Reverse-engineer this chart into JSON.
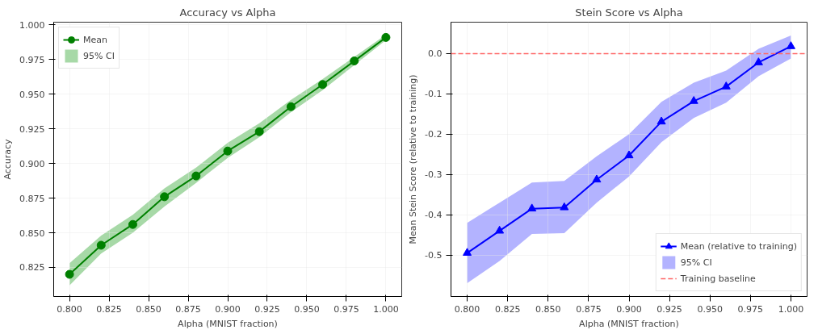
{
  "chart_data": [
    {
      "type": "line",
      "title": "Accuracy vs Alpha",
      "xlabel": "Alpha (MNIST fraction)",
      "ylabel": "Accuracy",
      "x": [
        0.8,
        0.82,
        0.84,
        0.86,
        0.88,
        0.9,
        0.92,
        0.94,
        0.96,
        0.98,
        1.0
      ],
      "series": [
        {
          "name": "Mean",
          "color": "#008000",
          "marker": "circle",
          "values": [
            0.82,
            0.841,
            0.856,
            0.876,
            0.891,
            0.909,
            0.923,
            0.941,
            0.957,
            0.974,
            0.991
          ]
        },
        {
          "name": "95% CI",
          "color": "#6cbf6c",
          "marker": "none",
          "values": [
            null,
            null,
            null,
            null,
            null,
            null,
            null,
            null,
            null,
            null,
            null
          ],
          "lower": [
            0.812,
            0.835,
            0.85,
            0.869,
            0.886,
            0.904,
            0.919,
            0.937,
            0.953,
            0.971,
            0.989
          ],
          "upper": [
            0.828,
            0.848,
            0.863,
            0.882,
            0.897,
            0.915,
            0.929,
            0.946,
            0.961,
            0.977,
            0.993
          ]
        }
      ],
      "xlim": [
        0.79,
        1.01
      ],
      "xticks": [
        {
          "value": 0.8,
          "label": "0.800"
        },
        {
          "value": 0.825,
          "label": "0.825"
        },
        {
          "value": 0.85,
          "label": "0.850"
        },
        {
          "value": 0.875,
          "label": "0.875"
        },
        {
          "value": 0.9,
          "label": "0.900"
        },
        {
          "value": 0.925,
          "label": "0.925"
        },
        {
          "value": 0.95,
          "label": "0.950"
        },
        {
          "value": 0.975,
          "label": "0.975"
        },
        {
          "value": 1.0,
          "label": "1.000"
        }
      ],
      "ylim": [
        0.804,
        1.002
      ],
      "yticks": [
        {
          "value": 0.825,
          "label": "0.825"
        },
        {
          "value": 0.85,
          "label": "0.850"
        },
        {
          "value": 0.875,
          "label": "0.875"
        },
        {
          "value": 0.9,
          "label": "0.900"
        },
        {
          "value": 0.925,
          "label": "0.925"
        },
        {
          "value": 0.95,
          "label": "0.950"
        },
        {
          "value": 0.975,
          "label": "0.975"
        },
        {
          "value": 1.0,
          "label": "1.000"
        }
      ],
      "grid": true,
      "legend": "top left",
      "line_style": "solid"
    },
    {
      "type": "line",
      "title": "Stein Score vs Alpha",
      "xlabel": "Alpha (MNIST fraction)",
      "ylabel": "Mean Stein Score (relative to training)",
      "x": [
        0.8,
        0.82,
        0.84,
        0.86,
        0.88,
        0.9,
        0.92,
        0.94,
        0.96,
        0.98,
        1.0
      ],
      "series": [
        {
          "name": "Mean (relative to training)",
          "color": "#0000ff",
          "marker": "triangle",
          "values": [
            -0.495,
            -0.44,
            -0.385,
            -0.382,
            -0.313,
            -0.253,
            -0.169,
            -0.118,
            -0.082,
            -0.022,
            0.018
          ]
        },
        {
          "name": "95% CI",
          "color": "#8080ff",
          "marker": "none",
          "values": [
            null,
            null,
            null,
            null,
            null,
            null,
            null,
            null,
            null,
            null,
            null
          ],
          "lower": [
            -0.57,
            -0.515,
            -0.448,
            -0.446,
            -0.37,
            -0.305,
            -0.22,
            -0.16,
            -0.122,
            -0.056,
            -0.012
          ],
          "upper": [
            -0.42,
            -0.37,
            -0.32,
            -0.316,
            -0.255,
            -0.2,
            -0.12,
            -0.072,
            -0.042,
            0.012,
            0.045
          ]
        }
      ],
      "ref_lines": [
        {
          "axis": "y",
          "value": 0,
          "label": "Training baseline",
          "color": "#ff6666",
          "line_style": "dashed"
        }
      ],
      "xlim": [
        0.79,
        1.01
      ],
      "xticks": [
        {
          "value": 0.8,
          "label": "0.800"
        },
        {
          "value": 0.825,
          "label": "0.825"
        },
        {
          "value": 0.85,
          "label": "0.850"
        },
        {
          "value": 0.875,
          "label": "0.875"
        },
        {
          "value": 0.9,
          "label": "0.900"
        },
        {
          "value": 0.925,
          "label": "0.925"
        },
        {
          "value": 0.95,
          "label": "0.950"
        },
        {
          "value": 0.975,
          "label": "0.975"
        },
        {
          "value": 1.0,
          "label": "1.000"
        }
      ],
      "ylim": [
        -0.603,
        0.078
      ],
      "yticks": [
        {
          "value": -0.5,
          "label": "-0.5"
        },
        {
          "value": -0.4,
          "label": "-0.4"
        },
        {
          "value": -0.3,
          "label": "-0.3"
        },
        {
          "value": -0.2,
          "label": "-0.2"
        },
        {
          "value": -0.1,
          "label": "-0.1"
        },
        {
          "value": 0.0,
          "label": "0.0"
        }
      ],
      "grid": true,
      "legend": "bottom right",
      "line_style": "solid"
    }
  ]
}
